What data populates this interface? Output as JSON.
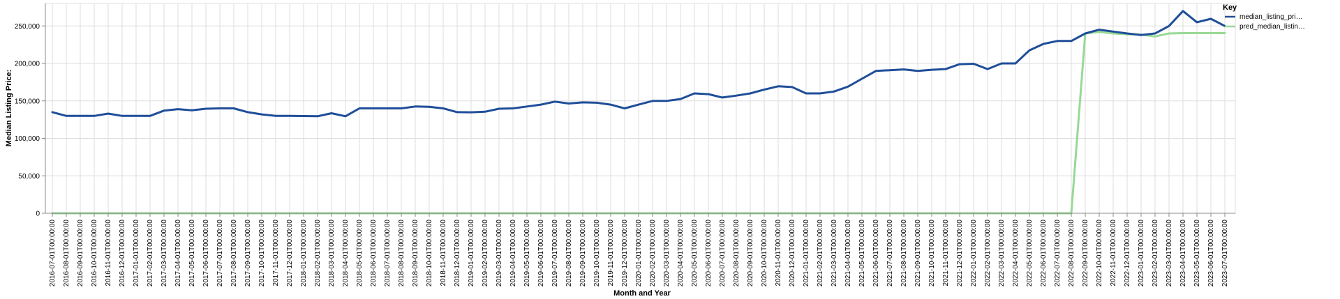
{
  "chart_data": {
    "type": "line",
    "xlabel": "Month and Year",
    "ylabel": "Median Listing Price:",
    "ylim": [
      0,
      280000
    ],
    "yticks": [
      0,
      50000,
      100000,
      150000,
      200000,
      250000
    ],
    "ytick_labels": [
      "0",
      "50,000",
      "100,000",
      "150,000",
      "200,000",
      "250,000"
    ],
    "grid": true,
    "legend": {
      "title": "Key",
      "placement": "top-right"
    },
    "x": [
      "2016-07-01T00:00:00",
      "2016-08-01T00:00:00",
      "2016-09-01T00:00:00",
      "2016-10-01T00:00:00",
      "2016-11-01T00:00:00",
      "2016-12-01T00:00:00",
      "2017-01-01T00:00:00",
      "2017-02-01T00:00:00",
      "2017-03-01T00:00:00",
      "2017-04-01T00:00:00",
      "2017-05-01T00:00:00",
      "2017-06-01T00:00:00",
      "2017-07-01T00:00:00",
      "2017-08-01T00:00:00",
      "2017-09-01T00:00:00",
      "2017-10-01T00:00:00",
      "2017-11-01T00:00:00",
      "2017-12-01T00:00:00",
      "2018-01-01T00:00:00",
      "2018-02-01T00:00:00",
      "2018-03-01T00:00:00",
      "2018-04-01T00:00:00",
      "2018-05-01T00:00:00",
      "2018-06-01T00:00:00",
      "2018-07-01T00:00:00",
      "2018-08-01T00:00:00",
      "2018-09-01T00:00:00",
      "2018-10-01T00:00:00",
      "2018-11-01T00:00:00",
      "2018-12-01T00:00:00",
      "2019-01-01T00:00:00",
      "2019-02-01T00:00:00",
      "2019-03-01T00:00:00",
      "2019-04-01T00:00:00",
      "2019-05-01T00:00:00",
      "2019-06-01T00:00:00",
      "2019-07-01T00:00:00",
      "2019-08-01T00:00:00",
      "2019-09-01T00:00:00",
      "2019-10-01T00:00:00",
      "2019-11-01T00:00:00",
      "2019-12-01T00:00:00",
      "2020-01-01T00:00:00",
      "2020-02-01T00:00:00",
      "2020-03-01T00:00:00",
      "2020-04-01T00:00:00",
      "2020-05-01T00:00:00",
      "2020-06-01T00:00:00",
      "2020-07-01T00:00:00",
      "2020-08-01T00:00:00",
      "2020-09-01T00:00:00",
      "2020-10-01T00:00:00",
      "2020-11-01T00:00:00",
      "2020-12-01T00:00:00",
      "2021-01-01T00:00:00",
      "2021-02-01T00:00:00",
      "2021-03-01T00:00:00",
      "2021-04-01T00:00:00",
      "2021-05-01T00:00:00",
      "2021-06-01T00:00:00",
      "2021-07-01T00:00:00",
      "2021-08-01T00:00:00",
      "2021-09-01T00:00:00",
      "2021-10-01T00:00:00",
      "2021-11-01T00:00:00",
      "2021-12-01T00:00:00",
      "2022-01-01T00:00:00",
      "2022-02-01T00:00:00",
      "2022-03-01T00:00:00",
      "2022-04-01T00:00:00",
      "2022-05-01T00:00:00",
      "2022-06-01T00:00:00",
      "2022-07-01T00:00:00",
      "2022-08-01T00:00:00",
      "2022-09-01T00:00:00",
      "2022-10-01T00:00:00",
      "2022-11-01T00:00:00",
      "2022-12-01T00:00:00",
      "2023-01-01T00:00:00",
      "2023-02-01T00:00:00",
      "2023-03-01T00:00:00",
      "2023-04-01T00:00:00",
      "2023-05-01T00:00:00",
      "2023-06-01T00:00:00",
      "2023-07-01T00:00:00"
    ],
    "series": [
      {
        "name": "median_listing_pri…",
        "color": "#1f4e99",
        "values": [
          135000,
          130000,
          130000,
          130000,
          133000,
          130000,
          130000,
          130000,
          137000,
          139000,
          137500,
          139500,
          140000,
          140000,
          135000,
          132000,
          130000,
          130000,
          129800,
          129500,
          133500,
          129500,
          140000,
          140000,
          140000,
          140000,
          142500,
          142000,
          140000,
          135000,
          134800,
          135500,
          139500,
          140000,
          142500,
          145000,
          149000,
          146500,
          148000,
          147500,
          145000,
          140000,
          145000,
          150000,
          150000,
          152500,
          160000,
          159000,
          154500,
          157000,
          160000,
          165000,
          169500,
          168500,
          160000,
          160000,
          162500,
          169000,
          179500,
          190000,
          191000,
          192000,
          190000,
          191500,
          192500,
          199000,
          199500,
          192500,
          200000,
          200000,
          217500,
          226000,
          230000,
          230000,
          240000,
          245000,
          242500,
          240000,
          238000,
          240000,
          250000,
          270000,
          255000,
          259500,
          250000
        ]
      },
      {
        "name": "pred_median_listin…",
        "color": "#98d996",
        "values": [
          0,
          0,
          0,
          0,
          0,
          0,
          0,
          0,
          0,
          0,
          0,
          0,
          0,
          0,
          0,
          0,
          0,
          0,
          0,
          0,
          0,
          0,
          0,
          0,
          0,
          0,
          0,
          0,
          0,
          0,
          0,
          0,
          0,
          0,
          0,
          0,
          0,
          0,
          0,
          0,
          0,
          0,
          0,
          0,
          0,
          0,
          0,
          0,
          0,
          0,
          0,
          0,
          0,
          0,
          0,
          0,
          0,
          0,
          0,
          0,
          0,
          0,
          0,
          0,
          0,
          0,
          0,
          0,
          0,
          0,
          0,
          0,
          0,
          0,
          240000,
          242000,
          240000,
          239000,
          238500,
          236000,
          240000,
          240500,
          240500,
          240500,
          240500
        ]
      }
    ]
  }
}
